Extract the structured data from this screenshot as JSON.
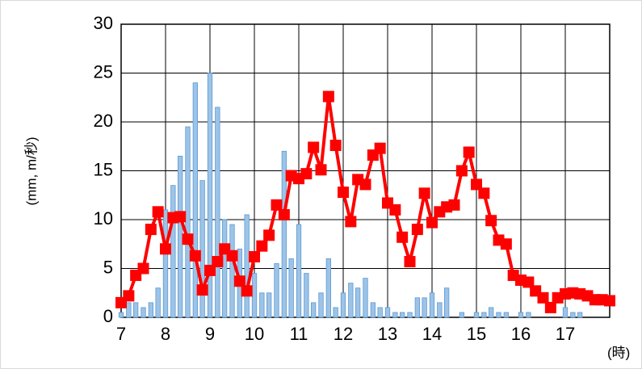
{
  "chart_data": {
    "type": "bar-line",
    "y_label": "(mm, m/秒)",
    "x_label": "(時)",
    "x": [
      7,
      7.17,
      7.33,
      7.5,
      7.67,
      7.83,
      8,
      8.17,
      8.33,
      8.5,
      8.67,
      8.83,
      9,
      9.17,
      9.33,
      9.5,
      9.67,
      9.83,
      10,
      10.17,
      10.33,
      10.5,
      10.67,
      10.83,
      11,
      11.17,
      11.33,
      11.5,
      11.67,
      11.83,
      12,
      12.17,
      12.33,
      12.5,
      12.67,
      12.83,
      13,
      13.17,
      13.33,
      13.5,
      13.67,
      13.83,
      14,
      14.17,
      14.33,
      14.5,
      14.67,
      14.83,
      15,
      15.17,
      15.33,
      15.5,
      15.67,
      15.83,
      16,
      16.17,
      16.33,
      16.5,
      16.67,
      16.83,
      17,
      17.17,
      17.33,
      17.5,
      17.67,
      17.83,
      18
    ],
    "series": [
      {
        "type": "bar",
        "color": "#9dc3e6",
        "values": [
          0.5,
          1.5,
          1.5,
          1,
          1.5,
          3,
          11,
          13.5,
          16.5,
          19.5,
          24,
          14,
          25,
          21.5,
          10,
          9.5,
          7,
          10.5,
          4.5,
          2.5,
          2.5,
          5.5,
          17,
          6,
          9.5,
          4.5,
          1.5,
          2.5,
          6,
          1,
          2.5,
          3.5,
          3,
          4,
          1.5,
          1,
          1,
          0.5,
          0.5,
          0.5,
          2,
          2,
          2.5,
          1.5,
          3,
          0,
          0.5,
          0,
          0.5,
          0.5,
          1,
          0.5,
          0.5,
          0,
          0.5,
          0.5,
          0,
          0,
          0,
          0,
          1,
          0.5,
          0.5,
          0,
          0,
          0,
          0
        ]
      },
      {
        "type": "line",
        "color": "#ff0000",
        "values": [
          1.5,
          2.2,
          4.3,
          5,
          9,
          10.8,
          7,
          10.2,
          10.3,
          8,
          6.3,
          2.8,
          4.8,
          5.7,
          7,
          6.3,
          3.7,
          2.7,
          6.2,
          7.3,
          8.4,
          11.5,
          10.5,
          14.5,
          14.2,
          14.7,
          17.4,
          15.1,
          22.6,
          17.6,
          12.8,
          9.8,
          14.1,
          13.6,
          16.6,
          17.3,
          11.7,
          11,
          8.2,
          5.7,
          9,
          12.7,
          9.7,
          10.8,
          11.3,
          11.5,
          15,
          16.9,
          13.6,
          12.7,
          9.9,
          7.9,
          7.5,
          4.3,
          3.8,
          3.6,
          2.7,
          2,
          1,
          2,
          2.4,
          2.5,
          2.4,
          2.2,
          1.8,
          1.8,
          1.7
        ]
      }
    ],
    "xlim": [
      7,
      18
    ],
    "xticks": [
      7,
      8,
      9,
      10,
      11,
      12,
      13,
      14,
      15,
      16,
      17
    ],
    "ylim": [
      0,
      30
    ],
    "yticks": [
      0,
      5,
      10,
      15,
      20,
      25,
      30
    ],
    "grid": true
  }
}
